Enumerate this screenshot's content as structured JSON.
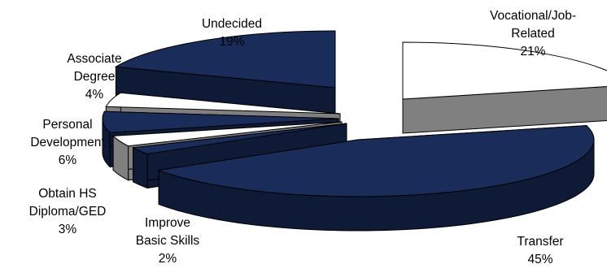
{
  "chart_data": {
    "type": "pie",
    "style": "3d-exploded",
    "title": "",
    "slices": [
      {
        "label": "Vocational/Job-Related",
        "label_lines": [
          "Vocational/Job-",
          "Related"
        ],
        "pct_text": "21%",
        "value": 21,
        "color": "#ffffff",
        "side_color": "#808080"
      },
      {
        "label": "Transfer",
        "label_lines": [
          "Transfer"
        ],
        "pct_text": "45%",
        "value": 45,
        "color": "#1a2d5a",
        "side_color": "#0e1a36"
      },
      {
        "label": "Improve Basic Skills",
        "label_lines": [
          "Improve",
          "Basic Skills"
        ],
        "pct_text": "2%",
        "value": 2,
        "color": "#1a2d5a",
        "side_color": "#0e1a36"
      },
      {
        "label": "Obtain HS Diploma/GED",
        "label_lines": [
          "Obtain HS",
          "Diploma/GED"
        ],
        "pct_text": "3%",
        "value": 3,
        "color": "#ffffff",
        "side_color": "#808080"
      },
      {
        "label": "Personal Development",
        "label_lines": [
          "Personal",
          "Development"
        ],
        "pct_text": "6%",
        "value": 6,
        "color": "#1a2d5a",
        "side_color": "#0e1a36"
      },
      {
        "label": "Associate Degree",
        "label_lines": [
          "Associate",
          "Degree"
        ],
        "pct_text": "4%",
        "value": 4,
        "color": "#ffffff",
        "side_color": "#808080"
      },
      {
        "label": "Undecided",
        "label_lines": [
          "Undecided"
        ],
        "pct_text": "19%",
        "value": 19,
        "color": "#1a2d5a",
        "side_color": "#0e1a36"
      }
    ]
  }
}
